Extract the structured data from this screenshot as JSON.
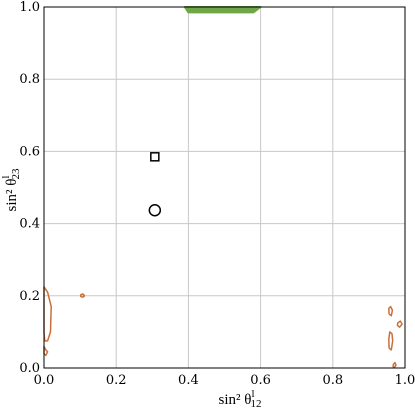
{
  "chart_data": {
    "type": "scatter",
    "title": "",
    "xlabel": "sin² θ",
    "xlabel_sup": "l",
    "xlabel_sub": "12",
    "ylabel": "sin² θ",
    "ylabel_sup": "l",
    "ylabel_sub": "23",
    "xlim": [
      0,
      1
    ],
    "ylim": [
      0,
      1
    ],
    "xticks": [
      "0.0",
      "0.2",
      "0.4",
      "0.6",
      "0.8",
      "1.0"
    ],
    "yticks": [
      "0.0",
      "0.2",
      "0.4",
      "0.6",
      "0.8",
      "1.0"
    ],
    "xtick_values": [
      0,
      0.2,
      0.4,
      0.6,
      0.8,
      1.0
    ],
    "ytick_values": [
      0,
      0.2,
      0.4,
      0.6,
      0.8,
      1.0
    ],
    "grid": true,
    "colors": {
      "orange": "#c8703a",
      "green": "#6fa64a",
      "marker": "#000000",
      "grid": "#c8c8c8"
    },
    "points": [
      {
        "marker": "square",
        "x": 0.307,
        "y": 0.585
      },
      {
        "marker": "circle",
        "x": 0.307,
        "y": 0.437
      }
    ],
    "regions": [
      {
        "color": "orange",
        "points": [
          [
            0.0,
            0.225
          ],
          [
            0.01,
            0.21
          ],
          [
            0.02,
            0.17
          ],
          [
            0.018,
            0.1
          ],
          [
            0.01,
            0.075
          ],
          [
            0.002,
            0.075
          ],
          [
            0.0,
            0.1
          ]
        ]
      },
      {
        "color": "orange",
        "points": [
          [
            0.0,
            0.06
          ],
          [
            0.005,
            0.05
          ],
          [
            0.01,
            0.045
          ],
          [
            0.005,
            0.035
          ],
          [
            0.0,
            0.04
          ]
        ]
      },
      {
        "color": "orange",
        "points": [
          [
            0.102,
            0.203
          ],
          [
            0.108,
            0.205
          ],
          [
            0.112,
            0.2
          ],
          [
            0.108,
            0.196
          ],
          [
            0.102,
            0.198
          ]
        ]
      },
      {
        "color": "orange",
        "points": [
          [
            0.955,
            0.165
          ],
          [
            0.96,
            0.17
          ],
          [
            0.965,
            0.16
          ],
          [
            0.962,
            0.145
          ],
          [
            0.956,
            0.15
          ]
        ]
      },
      {
        "color": "orange",
        "points": [
          [
            0.98,
            0.125
          ],
          [
            0.987,
            0.13
          ],
          [
            0.992,
            0.122
          ],
          [
            0.985,
            0.113
          ],
          [
            0.979,
            0.118
          ]
        ]
      },
      {
        "color": "orange",
        "points": [
          [
            0.958,
            0.1
          ],
          [
            0.964,
            0.095
          ],
          [
            0.966,
            0.075
          ],
          [
            0.962,
            0.05
          ],
          [
            0.956,
            0.055
          ],
          [
            0.955,
            0.08
          ]
        ]
      },
      {
        "color": "orange",
        "points": [
          [
            0.968,
            0.01
          ],
          [
            0.972,
            0.015
          ],
          [
            0.975,
            0.008
          ],
          [
            0.971,
            0.002
          ],
          [
            0.967,
            0.004
          ]
        ]
      },
      {
        "color": "green",
        "points": [
          [
            0.39,
            1.0
          ],
          [
            0.4,
            0.985
          ],
          [
            0.58,
            0.985
          ],
          [
            0.6,
            1.0
          ]
        ]
      }
    ]
  }
}
